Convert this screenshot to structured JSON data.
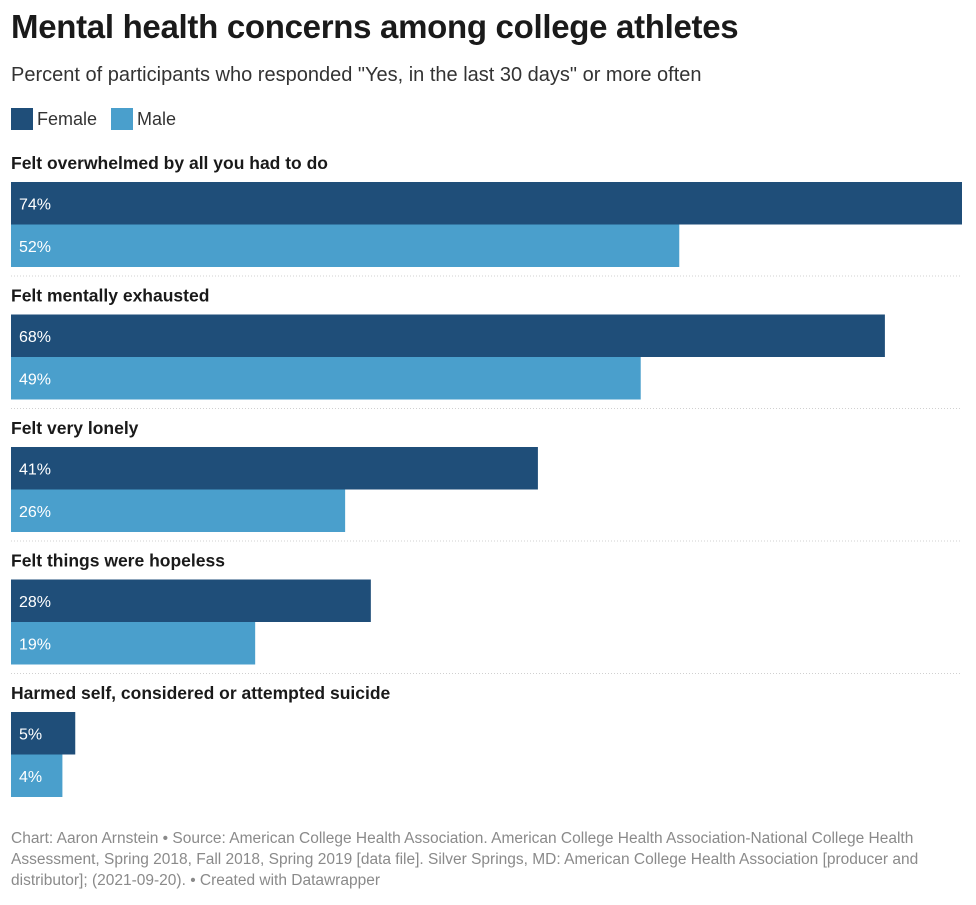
{
  "chart_data": {
    "type": "bar",
    "orientation": "horizontal",
    "title": "Mental health concerns among college athletes",
    "subtitle": "Percent of participants who responded \"Yes, in the last 30 days\" or more often",
    "categories": [
      "Felt overwhelmed by all you had to do",
      "Felt mentally exhausted",
      "Felt very lonely",
      "Felt things were hopeless",
      "Harmed self, considered or attempted suicide"
    ],
    "series": [
      {
        "name": "Female",
        "color": "#1f4e79",
        "values": [
          74,
          68,
          41,
          28,
          5
        ],
        "labels": [
          "74%",
          "68%",
          "41%",
          "28%",
          "5%"
        ]
      },
      {
        "name": "Male",
        "color": "#4a9fcc",
        "values": [
          52,
          49,
          26,
          19,
          4
        ],
        "labels": [
          "52%",
          "49%",
          "26%",
          "19%",
          "4%"
        ]
      }
    ],
    "xlim": [
      0,
      74
    ],
    "value_suffix": "%",
    "grid": false,
    "legend_position": "top-left"
  },
  "notes": "Chart: Aaron Arnstein • Source: American College Health Association. American College Health Association-National College Health Assessment, Spring 2018, Fall 2018, Spring 2019 [data file]. Silver Springs, MD: American College Health Association [producer and distributor]; (2021-09-20). • Created with Datawrapper"
}
